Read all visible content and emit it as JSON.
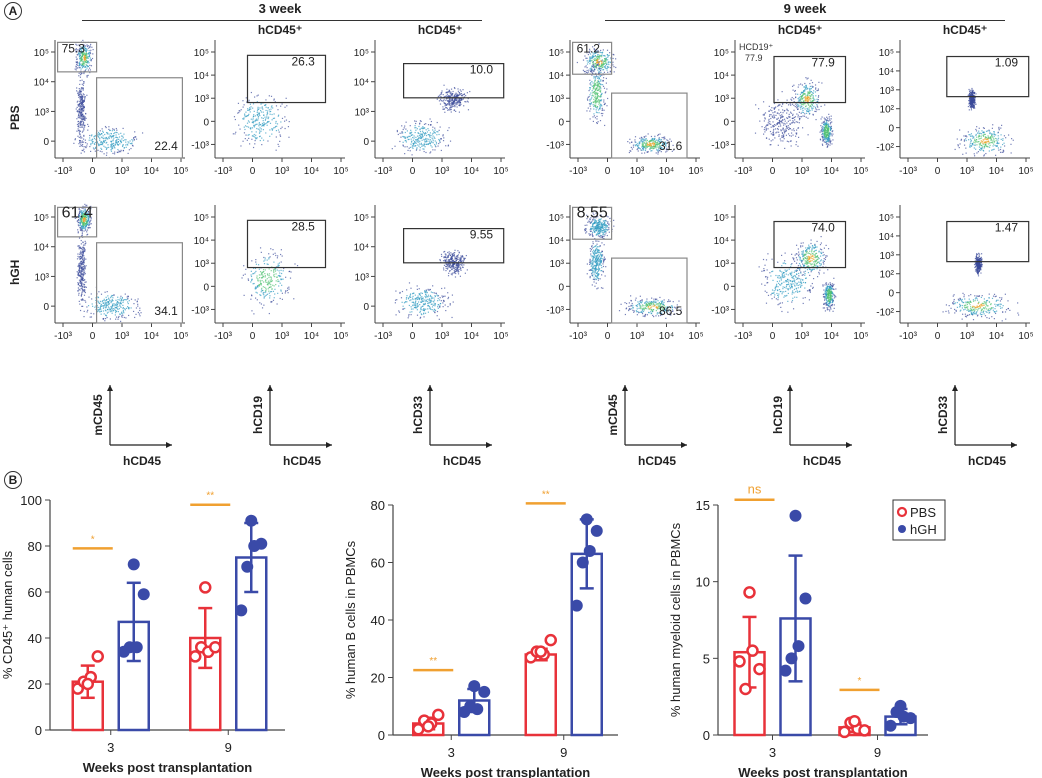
{
  "panels": {
    "A": {
      "label": "A",
      "timepoints": [
        "3 week",
        "9 week"
      ],
      "rows": [
        "PBS",
        "hGH"
      ],
      "plot_titles": [
        "",
        "hCD45⁺",
        "hCD45⁺",
        "",
        "hCD45⁺",
        "hCD45⁺"
      ],
      "extra_annotation": {
        "text1": "HCD19⁺",
        "text2": "77.9"
      },
      "x_ticks": [
        "-10³",
        "0",
        "10³",
        "10⁴",
        "10⁵"
      ],
      "y_ticks_standard": [
        "10⁵",
        "10⁴",
        "10³",
        "0"
      ],
      "y_ticks_with_neg": [
        "10⁵",
        "10⁴",
        "10³",
        "0",
        "-10³"
      ],
      "y_ticks_myeloid9": [
        "10⁵",
        "10⁴",
        "10³",
        "10²",
        "0",
        "-10²"
      ],
      "axis_keys": [
        {
          "y": "mCD45",
          "x": "hCD45"
        },
        {
          "y": "hCD19",
          "x": "hCD45"
        },
        {
          "y": "hCD33",
          "x": "hCD45"
        },
        {
          "y": "mCD45",
          "x": "hCD45"
        },
        {
          "y": "hCD19",
          "x": "hCD45"
        },
        {
          "y": "hCD33",
          "x": "hCD45"
        }
      ],
      "gate_values": {
        "PBS": [
          [
            "75.3",
            "22.4"
          ],
          [
            "26.3"
          ],
          [
            "10.0"
          ],
          [
            "61.2",
            "31.6"
          ],
          [
            "77.9"
          ],
          [
            "1.09"
          ]
        ],
        "hGH": [
          [
            "61.4",
            "34.1"
          ],
          [
            "28.5"
          ],
          [
            "9.55"
          ],
          [
            "8.55",
            "86.5"
          ],
          [
            "74.0"
          ],
          [
            "1.47"
          ]
        ]
      }
    },
    "B": {
      "label": "B"
    }
  },
  "colors": {
    "pbs": "#e8323a",
    "hgh": "#3a4aa8",
    "sig": "#f0a030",
    "axis": "#444444"
  },
  "chart_data": [
    {
      "type": "bar",
      "title": "",
      "xlabel": "Weeks post transplantation",
      "ylabel": "% CD45⁺ human cells",
      "categories": [
        "3",
        "9"
      ],
      "ylim": [
        0,
        100
      ],
      "yticks": [
        "0",
        "20",
        "40",
        "60",
        "80",
        "100"
      ],
      "series": [
        {
          "name": "PBS",
          "values": [
            21,
            40
          ],
          "sd": [
            7,
            13
          ],
          "points": [
            [
              18,
              21,
              23,
              32,
              20
            ],
            [
              32,
              36,
              34,
              36,
              62
            ]
          ]
        },
        {
          "name": "hGH",
          "values": [
            47,
            75
          ],
          "sd": [
            17,
            15
          ],
          "points": [
            [
              34,
              36,
              36,
              59,
              72
            ],
            [
              52,
              71,
              80,
              81,
              91
            ]
          ]
        }
      ],
      "significance": [
        "*",
        "**"
      ]
    },
    {
      "type": "bar",
      "title": "",
      "xlabel": "Weeks post transplantation",
      "ylabel": "% human B cells in PBMCs",
      "categories": [
        "3",
        "9"
      ],
      "ylim": [
        0,
        80
      ],
      "yticks": [
        "0",
        "20",
        "40",
        "60",
        "80"
      ],
      "series": [
        {
          "name": "PBS",
          "values": [
            4,
            28
          ],
          "sd": [
            2,
            2
          ],
          "points": [
            [
              2,
              5,
              4,
              7,
              3
            ],
            [
              27,
              29,
              28,
              33,
              29
            ]
          ]
        },
        {
          "name": "hGH",
          "values": [
            12,
            63
          ],
          "sd": [
            4,
            12
          ],
          "points": [
            [
              8,
              10,
              9,
              15,
              17
            ],
            [
              45,
              60,
              64,
              71,
              75
            ]
          ]
        }
      ],
      "significance": [
        "**",
        "**"
      ]
    },
    {
      "type": "bar",
      "title": "",
      "xlabel": "Weeks post transplantation",
      "ylabel": "% human myeloid cells in PBMCs",
      "categories": [
        "3",
        "9"
      ],
      "ylim": [
        0,
        15
      ],
      "yticks": [
        "0",
        "5",
        "10",
        "15"
      ],
      "series": [
        {
          "name": "PBS",
          "values": [
            5.4,
            0.5
          ],
          "sd": [
            2.3,
            0.3
          ],
          "points": [
            [
              4.8,
              3.0,
              5.5,
              4.3,
              9.3
            ],
            [
              0.2,
              0.8,
              0.4,
              0.3,
              0.9
            ]
          ]
        },
        {
          "name": "hGH",
          "values": [
            7.6,
            1.2
          ],
          "sd": [
            4.1,
            0.5
          ],
          "points": [
            [
              4.2,
              5.0,
              5.8,
              8.9,
              14.3
            ],
            [
              0.6,
              1.5,
              1.2,
              1.1,
              1.9
            ]
          ]
        }
      ],
      "significance": [
        "ns",
        "*"
      ],
      "legend": {
        "entries": [
          "PBS",
          "hGH"
        ],
        "position": "top-right"
      }
    }
  ]
}
